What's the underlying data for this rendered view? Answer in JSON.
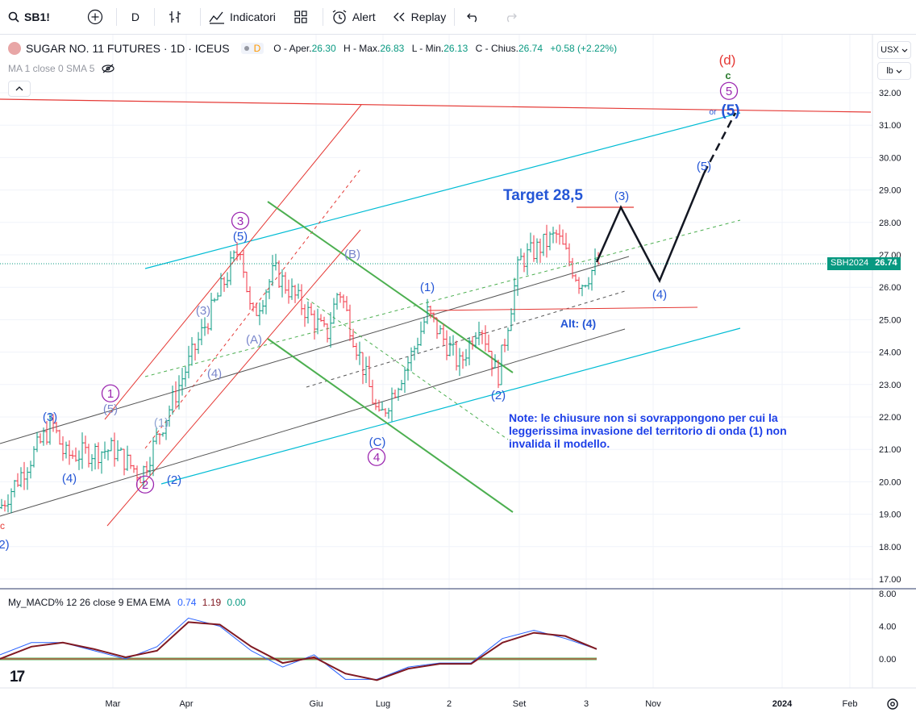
{
  "toolbar": {
    "symbol": "SB1!",
    "interval": "D",
    "indicators_label": "Indicatori",
    "alert_label": "Alert",
    "replay_label": "Replay"
  },
  "legend": {
    "title": "SUGAR NO. 11 FUTURES · 1D · ICEUS",
    "badge": "D",
    "open_label": "O - Aper.",
    "open": "26.30",
    "high_label": "H - Max.",
    "high": "26.83",
    "low_label": "L - Min.",
    "low": "26.13",
    "close_label": "C - Chius.",
    "close": "26.74",
    "change": "+0.58 (+2.22%)",
    "ma_label": "MA 1 close 0 SMA 5"
  },
  "macd": {
    "label": "My_MACD% 12 26 close 9 EMA EMA",
    "v1": "0.74",
    "v2": "1.19",
    "v3": "0.00"
  },
  "price_scale": {
    "currency": "USX",
    "scale_mode": "lb",
    "ticks": [
      "32.00",
      "31.00",
      "30.00",
      "29.00",
      "28.00",
      "27.00",
      "26.00",
      "25.00",
      "24.00",
      "23.00",
      "22.00",
      "21.00",
      "20.00",
      "19.00",
      "18.00",
      "17.00"
    ],
    "macd_ticks": [
      "8.00",
      "4.00",
      "0.00"
    ],
    "last_symbol": "SBH2024",
    "last_price": "26.74"
  },
  "time_scale": [
    "Mar",
    "Apr",
    "Giu",
    "Lug",
    "2",
    "Set",
    "3",
    "Nov",
    "2024",
    "Feb"
  ],
  "annotations": {
    "target": "Target 28,5",
    "note": "Note: le chiusure non si sovrappongono per cui la leggerissima invasione del territorio di onda (1) non invalida il modello.",
    "alt4": "Alt: (4)",
    "waves": [
      "(d)",
      "c",
      "5",
      "or",
      "(5)",
      "(3)",
      "(4)",
      "(5)",
      "(1)",
      "(2)",
      "(B)",
      "(A)",
      "(C)",
      "4",
      "3",
      "(5)",
      "(3)",
      "(4)",
      "(1)",
      "(2)",
      "1",
      "2",
      "(5)",
      "(3)",
      "(4)",
      "c",
      "2)"
    ]
  },
  "colors": {
    "up": "#089981",
    "down": "#f23645",
    "wave_blue": "#2456d6",
    "wave_purple": "#9c27b0",
    "cyan": "#00bcd4",
    "red": "#e53935",
    "green": "#4caf50"
  },
  "chart_data": {
    "type": "candlestick",
    "title": "SUGAR NO. 11 FUTURES · 1D · ICEUS",
    "ylabel": "USX/lb",
    "ylim": [
      16.6,
      33.0
    ],
    "x_ticks": [
      "Mar",
      "Apr",
      "Giu",
      "Lug",
      "2",
      "Set",
      "3",
      "Nov",
      "2024",
      "Feb"
    ],
    "price_path": [
      [
        "Feb start",
        19.2
      ],
      [
        "Feb mid",
        21.8
      ],
      [
        "Feb end",
        20.8
      ],
      [
        "Mar",
        21.0
      ],
      [
        "Mar mid",
        20.2
      ],
      [
        "Apr",
        23.5
      ],
      [
        "Apr mid",
        27.3
      ],
      [
        "Apr end",
        25.0
      ],
      [
        "May",
        26.5
      ],
      [
        "May mid",
        24.5
      ],
      [
        "Giu",
        26.0
      ],
      [
        "Giu end",
        21.9
      ],
      [
        "Lug",
        24.0
      ],
      [
        "Lug mid",
        25.2
      ],
      [
        "Lug end",
        23.6
      ],
      [
        "Ago",
        25.0
      ],
      [
        "Ago end",
        23.2
      ],
      [
        "Set",
        26.8
      ],
      [
        "Set mid",
        27.6
      ],
      [
        "Set end",
        26.1
      ],
      [
        "Oct",
        26.74
      ]
    ],
    "projection": [
      [
        "Oct",
        26.74
      ],
      [
        "Oct mid",
        28.5
      ],
      [
        "Nov",
        26.3
      ],
      [
        "Dec",
        29.8
      ],
      [
        "Dec end",
        31.5
      ]
    ],
    "last": {
      "open": 26.3,
      "high": 26.83,
      "low": 26.13,
      "close": 26.74,
      "change": 0.58,
      "change_pct": 2.22
    },
    "macd_series": {
      "name": "My_MACD%",
      "values": [
        0.5,
        2.0,
        2.0,
        1.0,
        0.0,
        1.5,
        5.0,
        4.0,
        1.0,
        -1.0,
        0.5,
        -2.5,
        -2.5,
        -1.0,
        -0.5,
        -0.5,
        2.5,
        3.5,
        2.5,
        1.2
      ],
      "signal": [
        0.0,
        1.5,
        2.0,
        1.2,
        0.2,
        1.0,
        4.5,
        4.2,
        1.5,
        -0.5,
        0.2,
        -1.8,
        -2.6,
        -1.2,
        -0.6,
        -0.6,
        2.0,
        3.2,
        2.8,
        1.2
      ]
    }
  }
}
